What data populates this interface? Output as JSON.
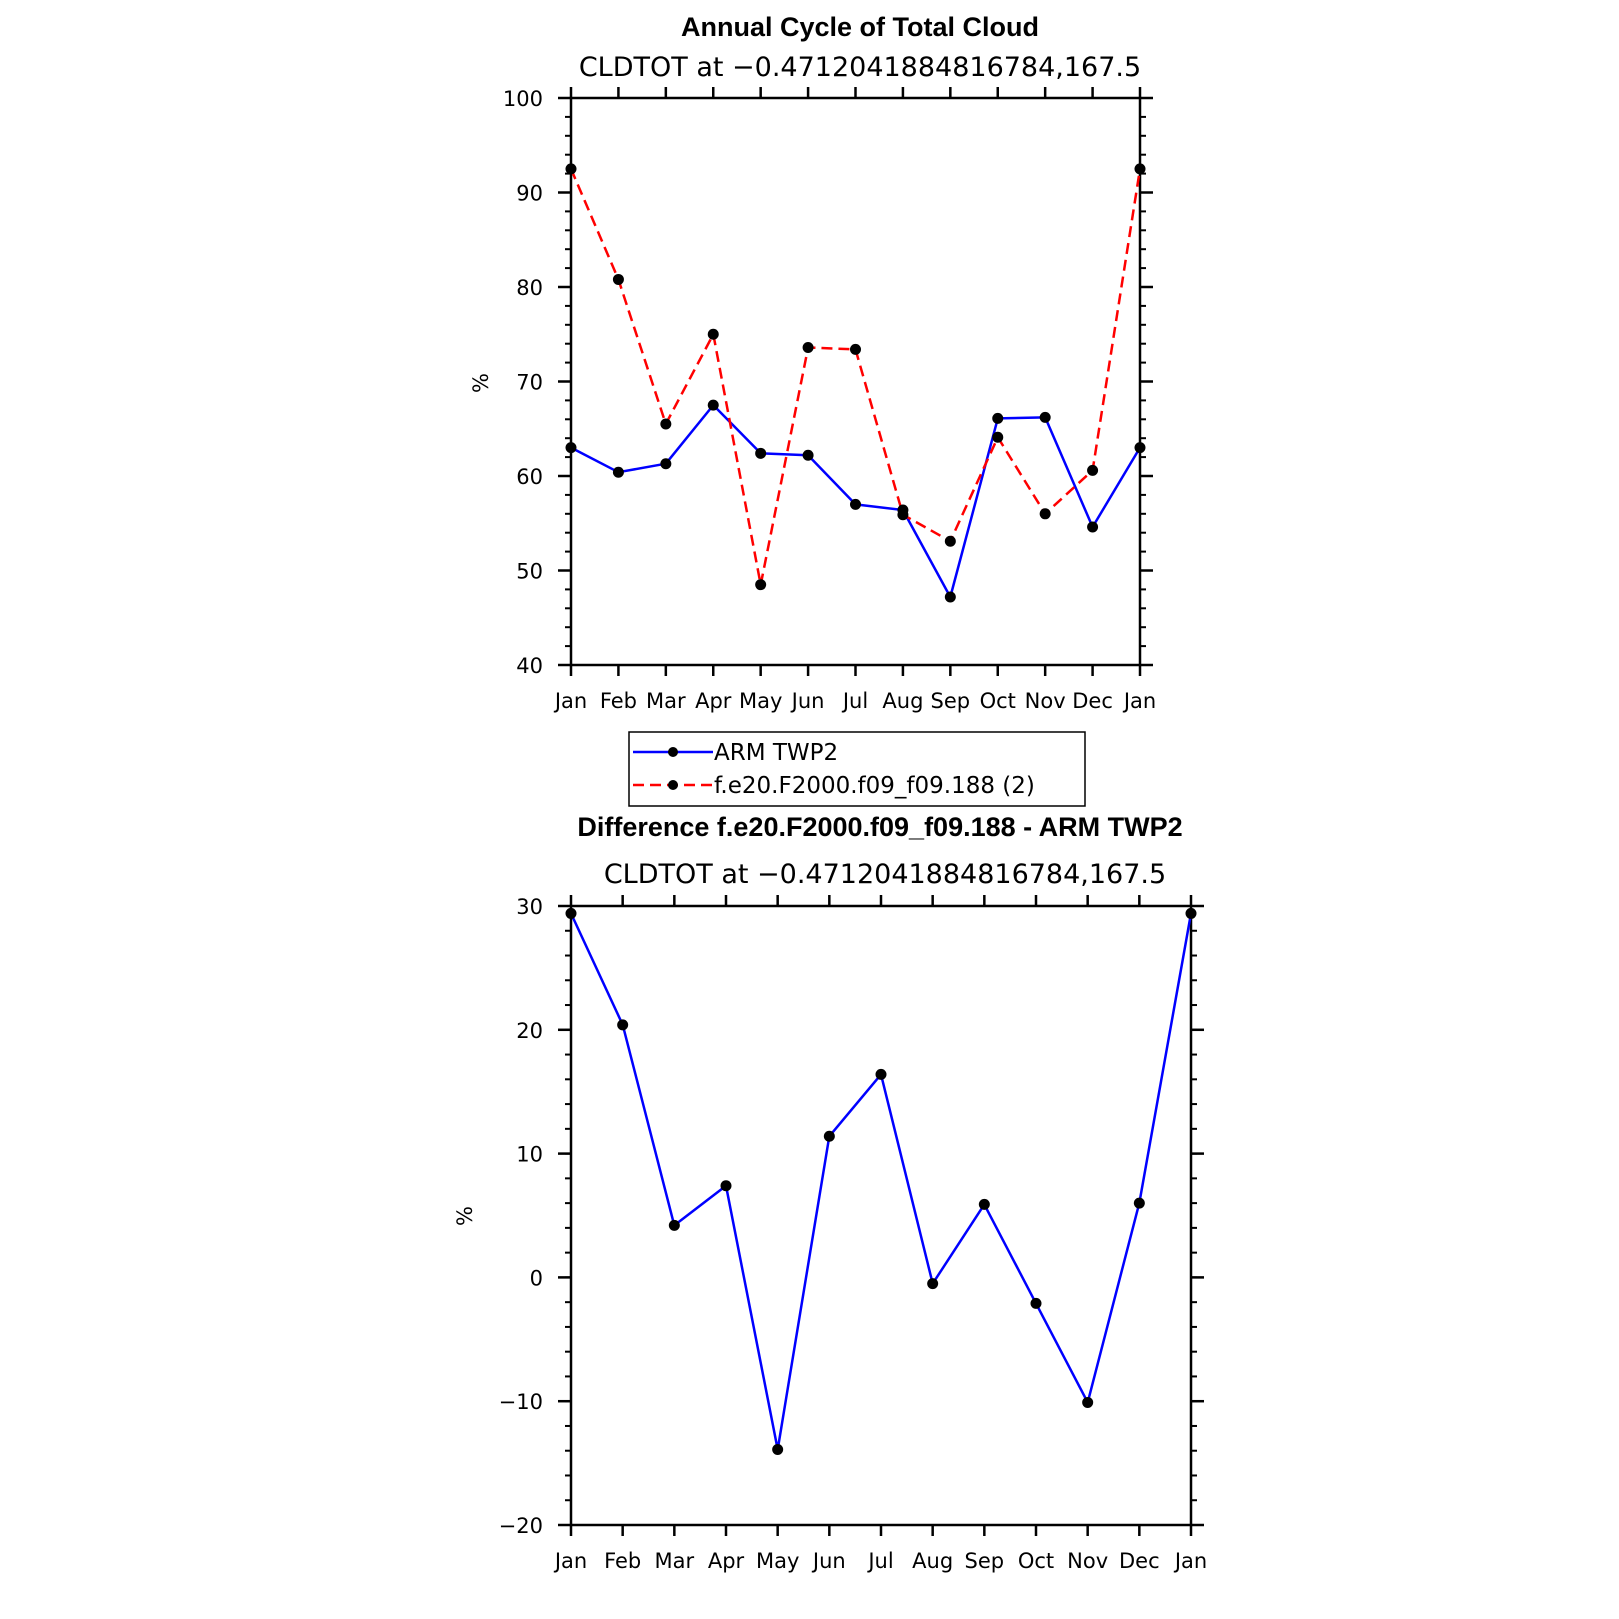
{
  "chart_data": [
    {
      "type": "line",
      "title": "Annual Cycle of Total Cloud",
      "subtitle": "CLDTOT at −0.4712041884816784,167.5",
      "xlabel": "",
      "ylabel": "%",
      "categories": [
        "Jan",
        "Feb",
        "Mar",
        "Apr",
        "May",
        "Jun",
        "Jul",
        "Aug",
        "Sep",
        "Oct",
        "Nov",
        "Dec",
        "Jan"
      ],
      "ylim": [
        40,
        100
      ],
      "yticks": [
        40,
        50,
        60,
        70,
        80,
        90,
        100
      ],
      "ytick_labels": [
        "40",
        "50",
        "60",
        "70",
        "80",
        "90",
        "100"
      ],
      "series": [
        {
          "name": "ARM TWP2",
          "color": "#0000ff",
          "dash": "solid",
          "values": [
            63.0,
            60.4,
            61.3,
            67.5,
            62.4,
            62.2,
            57.0,
            56.4,
            47.2,
            66.1,
            66.2,
            54.6,
            63.0
          ]
        },
        {
          "name": "f.e20.F2000.f09_f09.188 (2)",
          "color": "#ff0000",
          "dash": "dashed",
          "values": [
            92.5,
            80.8,
            65.5,
            75.0,
            48.5,
            73.6,
            73.4,
            55.9,
            53.1,
            64.1,
            56.0,
            60.6,
            92.5
          ]
        }
      ],
      "legend": {
        "position": "below",
        "entries": [
          "ARM TWP2",
          "f.e20.F2000.f09_f09.188 (2)"
        ]
      }
    },
    {
      "type": "line",
      "title": "Difference f.e20.F2000.f09_f09.188 - ARM TWP2",
      "subtitle": "CLDTOT at −0.4712041884816784,167.5",
      "xlabel": "",
      "ylabel": "%",
      "categories": [
        "Jan",
        "Feb",
        "Mar",
        "Apr",
        "May",
        "Jun",
        "Jul",
        "Aug",
        "Sep",
        "Oct",
        "Nov",
        "Dec",
        "Jan"
      ],
      "ylim": [
        -20,
        30
      ],
      "yticks": [
        -20,
        -10,
        0,
        10,
        20,
        30
      ],
      "ytick_labels": [
        "−20",
        "−10",
        "0",
        "10",
        "20",
        "30"
      ],
      "series": [
        {
          "name": "Difference",
          "color": "#0000ff",
          "dash": "solid",
          "values": [
            29.4,
            20.4,
            4.2,
            7.4,
            -13.9,
            11.4,
            16.4,
            -0.5,
            5.9,
            -2.1,
            -10.1,
            6.0,
            29.4
          ]
        }
      ]
    }
  ]
}
